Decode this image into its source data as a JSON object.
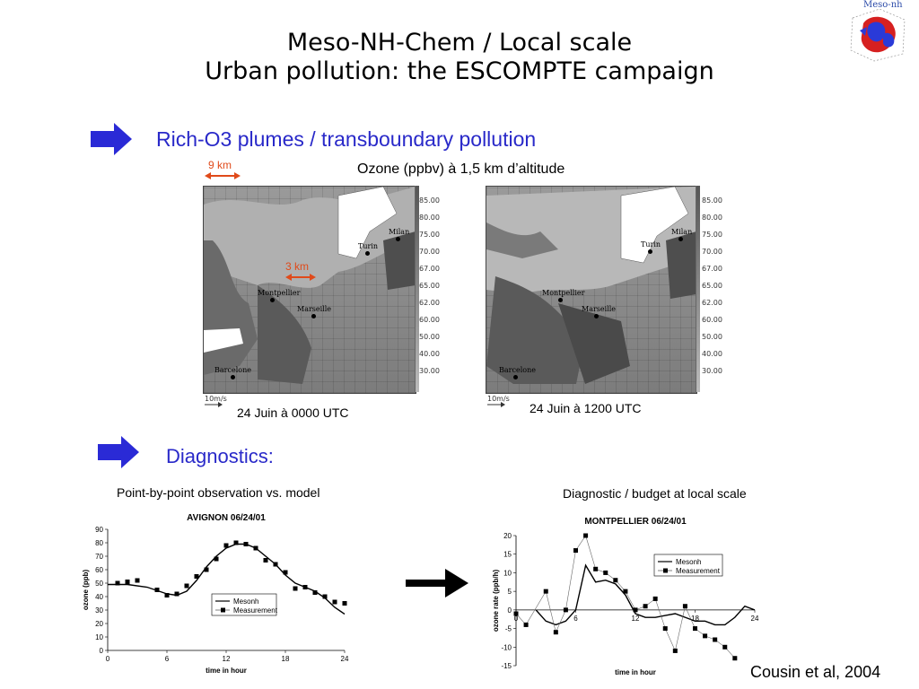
{
  "slide": {
    "title_line1": "Meso-NH-Chem / Local scale",
    "title_line2": "Urban pollution: the ESCOMPTE campaign",
    "logo_text": "Meso-nh",
    "section1": "Rich-O3 plumes / transboundary pollution",
    "section2": "Diagnostics:",
    "km9": "9 km",
    "km3": "3 km",
    "ozone_caption": "Ozone (ppbv) à 1,5 km d’altitude",
    "map1_caption": "24 Juin à 0000 UTC",
    "map2_caption": "24 Juin à 1200 UTC",
    "diag_left": "Point-by-point observation vs. model",
    "diag_right": "Diagnostic / budget at local scale",
    "credit": "Cousin et al, 2004"
  },
  "maps": {
    "scale_values": [
      "85.00",
      "80.00",
      "75.00",
      "70.00",
      "67.00",
      "65.00",
      "62.00",
      "60.00",
      "50.00",
      "40.00",
      "30.00"
    ],
    "vector_label": "10m/s",
    "cities": {
      "milan": "Milan",
      "turin": "Turin",
      "montpellier": "Montpellier",
      "marseille": "Marseille",
      "barcelone": "Barcelone"
    }
  },
  "colors": {
    "accent_blue": "#2a2ad6",
    "section_text": "#2929c9",
    "orange": "#e04a1a"
  },
  "chart_data": [
    {
      "type": "line",
      "title": "AVIGNON 06/24/01",
      "xlabel": "time in hour",
      "ylabel": "ozone (ppb)",
      "xlim": [
        0,
        24
      ],
      "ylim": [
        0,
        90
      ],
      "xticks": [
        0,
        6,
        12,
        18,
        24
      ],
      "yticks": [
        0,
        10,
        20,
        30,
        40,
        50,
        60,
        70,
        80,
        90
      ],
      "series": [
        {
          "name": "Mesonh",
          "style": "line",
          "x": [
            0,
            2,
            4,
            6,
            7,
            8,
            9,
            10,
            11,
            12,
            13,
            14,
            15,
            16,
            17,
            18,
            19,
            20,
            21,
            22,
            23,
            24
          ],
          "y": [
            49,
            49,
            47,
            42,
            41,
            44,
            52,
            62,
            70,
            76,
            79,
            79,
            76,
            70,
            64,
            56,
            50,
            47,
            44,
            39,
            32,
            27
          ]
        },
        {
          "name": "Measurement",
          "style": "marker",
          "x": [
            1,
            2,
            3,
            5,
            6,
            7,
            8,
            9,
            10,
            11,
            12,
            13,
            14,
            15,
            16,
            17,
            18,
            19,
            20,
            21,
            22,
            23,
            24
          ],
          "y": [
            50,
            51,
            52,
            45,
            41,
            42,
            48,
            55,
            60,
            68,
            78,
            80,
            79,
            76,
            67,
            64,
            58,
            46,
            47,
            43,
            40,
            36,
            35
          ]
        }
      ]
    },
    {
      "type": "line",
      "title": "MONTPELLIER 06/24/01",
      "xlabel": "time in hour",
      "ylabel": "ozone rate (ppb/h)",
      "xlim": [
        0,
        24
      ],
      "ylim": [
        -15,
        20
      ],
      "xticks": [
        0,
        6,
        12,
        18,
        24
      ],
      "yticks": [
        -15,
        -10,
        -5,
        0,
        5,
        10,
        15,
        20
      ],
      "series": [
        {
          "name": "Mesonh",
          "style": "line",
          "x": [
            2,
            3,
            4,
            5,
            6,
            7,
            8,
            9,
            10,
            11,
            12,
            13,
            14,
            15,
            16,
            17,
            18,
            19,
            20,
            21,
            22,
            23,
            24
          ],
          "y": [
            0,
            -3,
            -4,
            -3,
            0,
            12,
            7.5,
            8,
            7,
            4,
            -1,
            -2,
            -2,
            -1.5,
            -1,
            -2,
            -3,
            -3,
            -4,
            -4,
            -2,
            1,
            0
          ]
        },
        {
          "name": "Measurement",
          "style": "marker",
          "x": [
            0,
            1,
            3,
            4,
            5,
            6,
            7,
            8,
            9,
            10,
            11,
            12,
            13,
            14,
            15,
            16,
            17,
            18,
            19,
            20,
            21,
            22
          ],
          "y": [
            -1,
            -4,
            5,
            -6,
            0,
            16,
            20,
            11,
            10,
            8,
            5,
            0,
            1,
            3,
            -5,
            -11,
            1,
            -5,
            -7,
            -8,
            -10,
            -13
          ]
        }
      ]
    }
  ]
}
